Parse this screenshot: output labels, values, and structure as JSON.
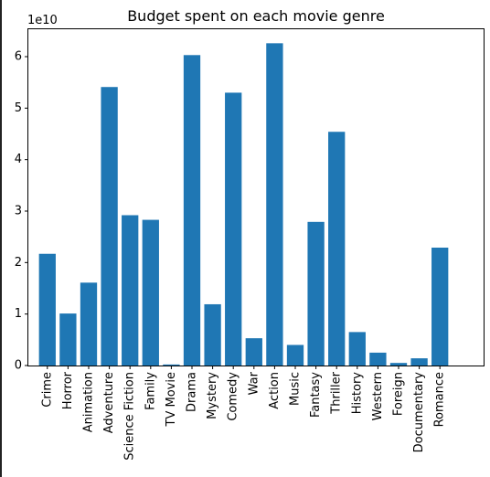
{
  "chart_data": {
    "type": "bar",
    "title": "Budget spent on each movie genre",
    "xlabel": "",
    "ylabel": "",
    "offset_label": "1e10",
    "categories": [
      "Crime",
      "Horror",
      "Animation",
      "Adventure",
      "Science Fiction",
      "Family",
      "TV Movie",
      "Drama",
      "Mystery",
      "Comedy",
      "War",
      "Action",
      "Music",
      "Fantasy",
      "Thriller",
      "History",
      "Western",
      "Foreign",
      "Documentary",
      "Romance"
    ],
    "values": [
      2.17,
      1.01,
      1.61,
      5.41,
      2.92,
      2.83,
      0.02,
      6.03,
      1.19,
      5.3,
      0.53,
      6.26,
      0.4,
      2.79,
      4.54,
      0.65,
      0.25,
      0.05,
      0.14,
      2.29
    ],
    "yticks": [
      0,
      1,
      2,
      3,
      4,
      5,
      6
    ],
    "ylim": [
      0,
      6.55
    ],
    "grid": false,
    "bar_color": "#1f77b4"
  }
}
